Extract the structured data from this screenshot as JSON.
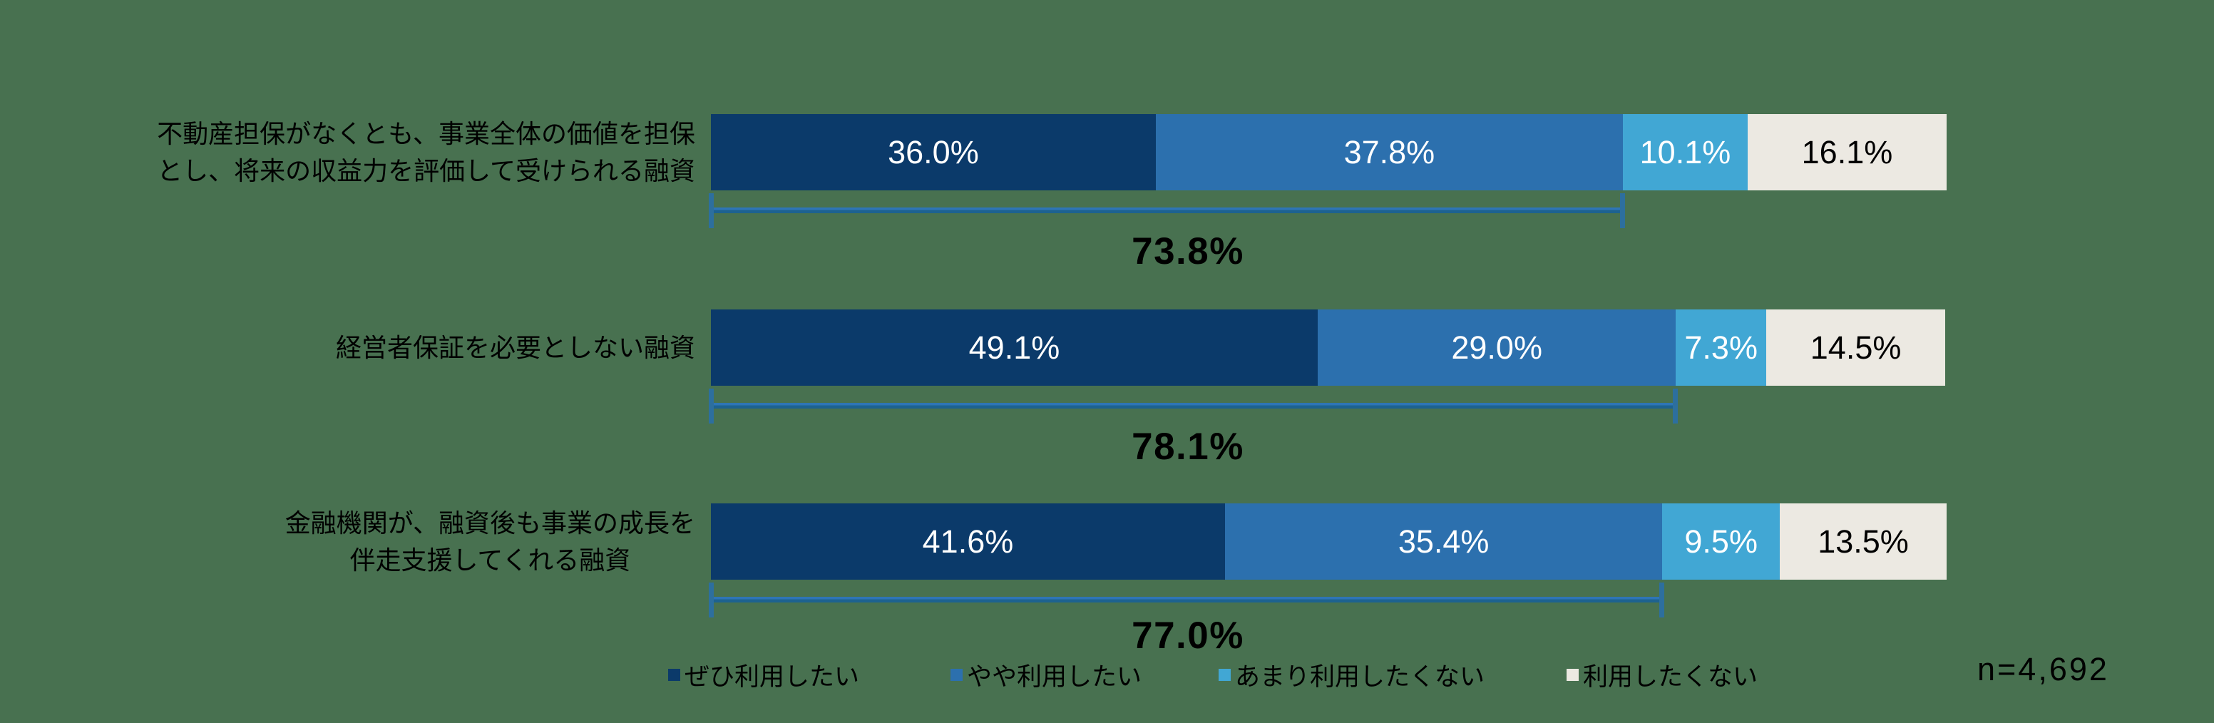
{
  "background_color": "#487150",
  "colors": {
    "series": [
      "#0b3a6a",
      "#2c70ae",
      "#41a7d4",
      "#ece9e2"
    ],
    "bracket_line_top": "#2e75b6",
    "bracket_line_bottom": "#1d6290",
    "bracket_tick": "#2d6f9e",
    "text": "#000000",
    "bar_value_text": "#ffffff"
  },
  "chart_data": {
    "type": "stacked-bar-horizontal",
    "legend": [
      "ぜひ利用したい",
      "やや利用したい",
      "あまり利用したくない",
      "利用したくない"
    ],
    "rows": [
      {
        "category_lines": [
          "不動産担保がなくとも、事業全体の価値を担保",
          "とし、将来の収益力を評価して受けられる融資"
        ],
        "values": [
          36.0,
          37.8,
          10.1,
          16.1
        ],
        "value_labels": [
          "36.0%",
          "37.8%",
          "10.1%",
          "16.1%"
        ],
        "bracket_span": 73.8,
        "bracket_label": "73.8%"
      },
      {
        "category_lines": [
          "経営者保証を必要としない融資"
        ],
        "values": [
          49.1,
          29.0,
          7.3,
          14.5
        ],
        "value_labels": [
          "49.1%",
          "29.0%",
          "7.3%",
          "14.5%"
        ],
        "bracket_span": 78.1,
        "bracket_label": "78.1%"
      },
      {
        "category_lines": [
          "金融機関が、融資後も事業の成長を",
          "伴走支援してくれる融資"
        ],
        "values": [
          41.6,
          35.4,
          9.5,
          13.5
        ],
        "value_labels": [
          "41.6%",
          "35.4%",
          "9.5%",
          "13.5%"
        ],
        "bracket_span": 77.0,
        "bracket_label": "77.0%"
      }
    ],
    "note": "n=4,692"
  }
}
